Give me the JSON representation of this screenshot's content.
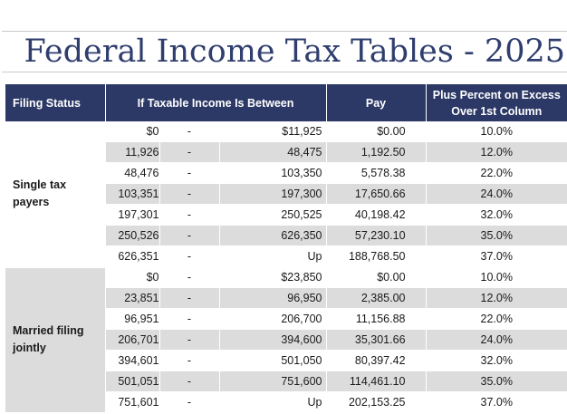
{
  "title": "Federal Income Tax Tables - 2025",
  "columns": {
    "filing_status": "Filing Status",
    "range": "If Taxable Income Is Between",
    "pay": "Pay",
    "percent": "Plus Percent on Excess Over 1st Column"
  },
  "groups": [
    {
      "status": "Single tax payers",
      "rows": [
        {
          "from": "$0",
          "dash": "-",
          "to": "$11,925",
          "pay": "$0.00",
          "pct": "10.0%"
        },
        {
          "from": "11,926",
          "dash": "-",
          "to": "48,475",
          "pay": "1,192.50",
          "pct": "12.0%"
        },
        {
          "from": "48,476",
          "dash": "-",
          "to": "103,350",
          "pay": "5,578.38",
          "pct": "22.0%"
        },
        {
          "from": "103,351",
          "dash": "-",
          "to": "197,300",
          "pay": "17,650.66",
          "pct": "24.0%"
        },
        {
          "from": "197,301",
          "dash": "-",
          "to": "250,525",
          "pay": "40,198.42",
          "pct": "32.0%"
        },
        {
          "from": "250,526",
          "dash": "-",
          "to": "626,350",
          "pay": "57,230.10",
          "pct": "35.0%"
        },
        {
          "from": "626,351",
          "dash": "-",
          "to": "Up",
          "pay": "188,768.50",
          "pct": "37.0%"
        }
      ]
    },
    {
      "status": "Married filing jointly",
      "rows": [
        {
          "from": "$0",
          "dash": "-",
          "to": "$23,850",
          "pay": "$0.00",
          "pct": "10.0%"
        },
        {
          "from": "23,851",
          "dash": "-",
          "to": "96,950",
          "pay": "2,385.00",
          "pct": "12.0%"
        },
        {
          "from": "96,951",
          "dash": "-",
          "to": "206,700",
          "pay": "11,156.88",
          "pct": "22.0%"
        },
        {
          "from": "206,701",
          "dash": "-",
          "to": "394,600",
          "pay": "35,301.66",
          "pct": "24.0%"
        },
        {
          "from": "394,601",
          "dash": "-",
          "to": "501,050",
          "pay": "80,397.42",
          "pct": "32.0%"
        },
        {
          "from": "501,051",
          "dash": "-",
          "to": "751,600",
          "pay": "114,461.10",
          "pct": "35.0%"
        },
        {
          "from": "751,601",
          "dash": "-",
          "to": "Up",
          "pay": "202,153.25",
          "pct": "37.0%"
        }
      ]
    }
  ]
}
